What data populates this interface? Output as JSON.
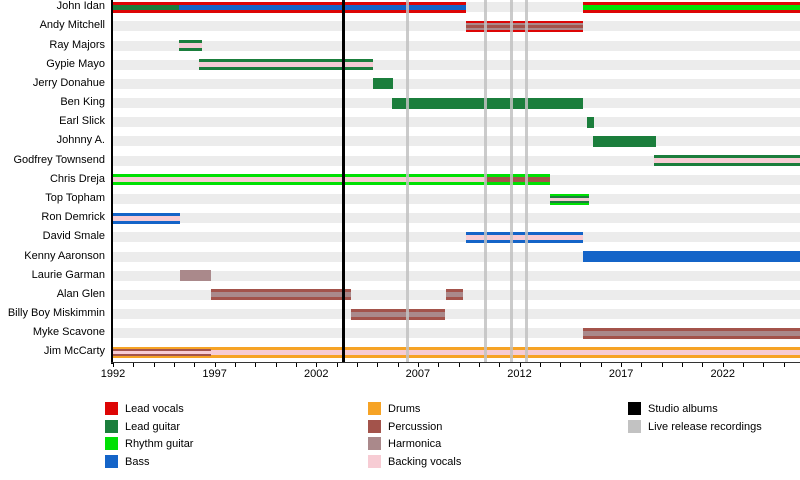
{
  "chart_data": {
    "type": "timeline",
    "x_axis": {
      "start": 1992,
      "end": 2025.8,
      "labeled_ticks": [
        1992,
        1997,
        2002,
        2007,
        2012,
        2017,
        2022
      ],
      "minor_tick_every": 1
    },
    "colors": {
      "lead_vocals": "#dd0505",
      "lead_guitar": "#1b7e3c",
      "rhythm_guitar": "#00e004",
      "bass": "#1464c8",
      "drums": "#f6a325",
      "percussion": "#a3534b",
      "harmonica": "#aa898b",
      "backing_vocals": "#f7ccd4",
      "studio_albums": "#000000",
      "live_releases": "#c2c2c2",
      "row_band": "#ececec"
    },
    "members": [
      {
        "name": "John Idan",
        "periods": [
          {
            "start": 1992.0,
            "end": 1995.25,
            "roles": [
              "lead_vocals",
              "lead_guitar"
            ]
          },
          {
            "start": 1995.25,
            "end": 2009.35,
            "roles": [
              "lead_vocals",
              "bass"
            ]
          },
          {
            "start": 2015.1,
            "end": 2025.8,
            "roles": [
              "lead_vocals",
              "rhythm_guitar"
            ]
          }
        ]
      },
      {
        "name": "Andy Mitchell",
        "periods": [
          {
            "start": 2009.35,
            "end": 2015.1,
            "roles": [
              "lead_vocals",
              "harmonica",
              "percussion"
            ]
          }
        ]
      },
      {
        "name": "Ray Majors",
        "periods": [
          {
            "start": 1995.25,
            "end": 1996.4,
            "roles": [
              "lead_guitar",
              "backing_vocals"
            ]
          }
        ]
      },
      {
        "name": "Gypie Mayo",
        "periods": [
          {
            "start": 1996.25,
            "end": 2004.8,
            "roles": [
              "lead_guitar",
              "backing_vocals"
            ]
          }
        ]
      },
      {
        "name": "Jerry Donahue",
        "periods": [
          {
            "start": 2004.8,
            "end": 2005.8,
            "roles": [
              "lead_guitar"
            ]
          }
        ]
      },
      {
        "name": "Ben King",
        "periods": [
          {
            "start": 2005.75,
            "end": 2015.1,
            "roles": [
              "lead_guitar"
            ]
          }
        ]
      },
      {
        "name": "Earl Slick",
        "periods": [
          {
            "start": 2015.3,
            "end": 2015.65,
            "roles": [
              "lead_guitar"
            ]
          }
        ]
      },
      {
        "name": "Johnny A.",
        "periods": [
          {
            "start": 2015.6,
            "end": 2018.7,
            "roles": [
              "lead_guitar"
            ]
          }
        ]
      },
      {
        "name": "Godfrey Townsend",
        "periods": [
          {
            "start": 2018.6,
            "end": 2025.8,
            "roles": [
              "lead_guitar",
              "backing_vocals"
            ]
          }
        ]
      },
      {
        "name": "Chris Dreja",
        "periods": [
          {
            "start": 1992.0,
            "end": 2010.3,
            "roles": [
              "rhythm_guitar",
              "backing_vocals"
            ]
          },
          {
            "start": 2010.3,
            "end": 2013.5,
            "roles": [
              "rhythm_guitar",
              "percussion"
            ]
          }
        ]
      },
      {
        "name": "Top Topham",
        "periods": [
          {
            "start": 2013.5,
            "end": 2015.4,
            "roles": [
              "rhythm_guitar",
              "lead_guitar",
              "backing_vocals"
            ]
          }
        ]
      },
      {
        "name": "Ron Demrick",
        "periods": [
          {
            "start": 1992.0,
            "end": 1995.3,
            "roles": [
              "bass",
              "backing_vocals"
            ]
          }
        ]
      },
      {
        "name": "David Smale",
        "periods": [
          {
            "start": 2009.35,
            "end": 2015.1,
            "roles": [
              "bass",
              "backing_vocals"
            ]
          }
        ]
      },
      {
        "name": "Kenny Aaronson",
        "periods": [
          {
            "start": 2015.1,
            "end": 2025.8,
            "roles": [
              "bass"
            ]
          }
        ]
      },
      {
        "name": "Laurie Garman",
        "periods": [
          {
            "start": 1995.3,
            "end": 1996.8,
            "roles": [
              "harmonica"
            ]
          }
        ]
      },
      {
        "name": "Alan Glen",
        "periods": [
          {
            "start": 1996.8,
            "end": 2003.7,
            "roles": [
              "percussion",
              "harmonica"
            ]
          },
          {
            "start": 2008.4,
            "end": 2009.2,
            "roles": [
              "percussion",
              "harmonica"
            ]
          }
        ]
      },
      {
        "name": "Billy Boy Miskimmin",
        "periods": [
          {
            "start": 2003.7,
            "end": 2008.35,
            "roles": [
              "percussion",
              "harmonica"
            ]
          }
        ]
      },
      {
        "name": "Myke Scavone",
        "periods": [
          {
            "start": 2015.1,
            "end": 2025.8,
            "roles": [
              "percussion",
              "harmonica"
            ]
          }
        ]
      },
      {
        "name": "Jim McCarty",
        "periods": [
          {
            "start": 1992.0,
            "end": 1996.8,
            "roles": [
              "drums",
              "percussion",
              "backing_vocals"
            ]
          },
          {
            "start": 1996.8,
            "end": 2025.8,
            "roles": [
              "drums",
              "backing_vocals"
            ]
          }
        ]
      }
    ],
    "events": {
      "studio_albums": [
        2003.35
      ],
      "live_releases": [
        2006.5,
        2010.35,
        2011.6,
        2012.35
      ]
    }
  },
  "legend": {
    "columns": [
      {
        "items": [
          {
            "label": "Lead vocals",
            "role": "lead_vocals"
          },
          {
            "label": "Lead guitar",
            "role": "lead_guitar"
          },
          {
            "label": "Rhythm guitar",
            "role": "rhythm_guitar"
          },
          {
            "label": "Bass",
            "role": "bass"
          }
        ]
      },
      {
        "items": [
          {
            "label": "Drums",
            "role": "drums"
          },
          {
            "label": "Percussion",
            "role": "percussion"
          },
          {
            "label": "Harmonica",
            "role": "harmonica"
          },
          {
            "label": "Backing vocals",
            "role": "backing_vocals"
          }
        ]
      },
      {
        "items": [
          {
            "label": "Studio albums",
            "role": "studio_albums"
          },
          {
            "label": "Live release recordings",
            "role": "live_releases"
          }
        ]
      }
    ]
  }
}
